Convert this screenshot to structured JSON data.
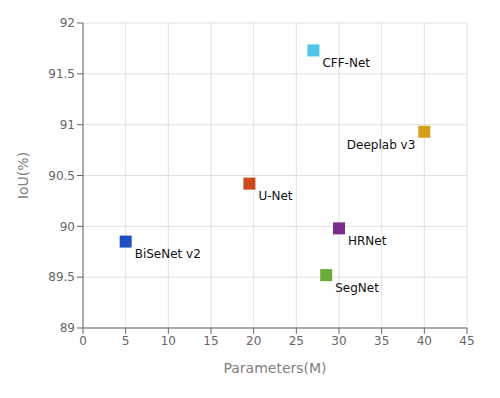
{
  "chart_data": {
    "type": "scatter",
    "x": [
      27,
      40,
      19.5,
      30,
      5,
      28.5
    ],
    "values": [
      91.73,
      90.93,
      90.42,
      89.98,
      89.85,
      89.52
    ],
    "colors": [
      "#4FC3E8",
      "#D4A017",
      "#CC4A1A",
      "#7B2D8B",
      "#1C4FBD",
      "#6AAB3A"
    ],
    "annotations": [
      "CFF-Net",
      "Deeplab v3",
      "U-Net",
      "HRNet",
      "BiSeNet v2",
      "SegNet"
    ],
    "marker": "square",
    "xlabel": "Parameters(M)",
    "ylabel": "IoU(%)",
    "xlim": [
      0,
      45
    ],
    "ylim": [
      89,
      92
    ],
    "xticks": [
      0,
      5,
      10,
      15,
      20,
      25,
      30,
      35,
      40,
      45
    ],
    "yticks": [
      89,
      89.5,
      90,
      90.5,
      91,
      91.5,
      92
    ],
    "grid": true
  }
}
